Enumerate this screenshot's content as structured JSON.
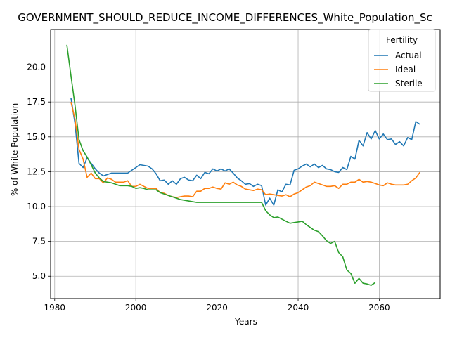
{
  "chart_data": {
    "type": "line",
    "title": "GOVERNMENT_SHOULD_REDUCE_INCOME_DIFFERENCES_White_Population_Sc",
    "xlabel": "Years",
    "ylabel": "% of White Population",
    "xlim": [
      1979,
      2075
    ],
    "ylim": [
      3.4,
      22.7
    ],
    "xticks": [
      1980,
      2000,
      2020,
      2040,
      2060
    ],
    "yticks": [
      5.0,
      7.5,
      10.0,
      12.5,
      15.0,
      17.5,
      20.0
    ],
    "xtick_labels": [
      "1980",
      "2000",
      "2020",
      "2040",
      "2060"
    ],
    "ytick_labels": [
      "5.0",
      "7.5",
      "10.0",
      "12.5",
      "15.0",
      "17.5",
      "20.0"
    ],
    "grid": true,
    "legend": {
      "title": "Fertility",
      "placement": "top-right"
    },
    "series": [
      {
        "name": "Actual",
        "color": "#1f77b4",
        "x": [
          1984,
          1985,
          1986,
          1987,
          1988,
          1989,
          1990,
          1991,
          1992,
          1993,
          1994,
          1995,
          1996,
          1997,
          1998,
          1999,
          2000,
          2001,
          2002,
          2003,
          2004,
          2005,
          2006,
          2007,
          2008,
          2009,
          2010,
          2011,
          2012,
          2013,
          2014,
          2015,
          2016,
          2017,
          2018,
          2019,
          2020,
          2021,
          2022,
          2023,
          2024,
          2025,
          2026,
          2027,
          2028,
          2029,
          2030,
          2031,
          2032,
          2033,
          2034,
          2035,
          2036,
          2037,
          2038,
          2039,
          2040,
          2041,
          2042,
          2043,
          2044,
          2045,
          2046,
          2047,
          2048,
          2049,
          2050,
          2051,
          2052,
          2053,
          2054,
          2055,
          2056,
          2057,
          2058,
          2059,
          2060,
          2061,
          2062,
          2063,
          2064,
          2065,
          2066,
          2067,
          2068,
          2069,
          2070
        ],
        "values": [
          17.8,
          16.0,
          13.1,
          12.8,
          13.5,
          13.1,
          12.7,
          12.4,
          12.2,
          12.3,
          12.4,
          12.4,
          12.4,
          12.4,
          12.4,
          12.6,
          12.8,
          13.0,
          12.95,
          12.9,
          12.7,
          12.35,
          11.85,
          11.9,
          11.6,
          11.85,
          11.6,
          12.0,
          12.1,
          11.9,
          11.85,
          12.25,
          12.0,
          12.45,
          12.35,
          12.7,
          12.55,
          12.7,
          12.55,
          12.7,
          12.4,
          12.05,
          11.85,
          11.6,
          11.65,
          11.45,
          11.6,
          11.5,
          10.1,
          10.6,
          10.1,
          11.2,
          11.05,
          11.6,
          11.55,
          12.6,
          12.7,
          12.9,
          13.05,
          12.85,
          13.05,
          12.8,
          12.95,
          12.7,
          12.65,
          12.5,
          12.45,
          12.8,
          12.65,
          13.6,
          13.4,
          14.75,
          14.35,
          15.3,
          14.85,
          15.45,
          14.85,
          15.2,
          14.8,
          14.85,
          14.45,
          14.65,
          14.35,
          14.95,
          14.8,
          16.1,
          15.9
        ]
      },
      {
        "name": "Ideal",
        "color": "#ff7f0e",
        "x": [
          1984,
          1985,
          1986,
          1987,
          1988,
          1989,
          1990,
          1991,
          1992,
          1993,
          1994,
          1995,
          1996,
          1997,
          1998,
          1999,
          2000,
          2001,
          2002,
          2003,
          2004,
          2005,
          2006,
          2007,
          2008,
          2009,
          2010,
          2011,
          2012,
          2013,
          2014,
          2015,
          2016,
          2017,
          2018,
          2019,
          2020,
          2021,
          2022,
          2023,
          2024,
          2025,
          2026,
          2027,
          2028,
          2029,
          2030,
          2031,
          2032,
          2033,
          2034,
          2035,
          2036,
          2037,
          2038,
          2039,
          2040,
          2041,
          2042,
          2043,
          2044,
          2045,
          2046,
          2047,
          2048,
          2049,
          2050,
          2051,
          2052,
          2053,
          2054,
          2055,
          2056,
          2057,
          2058,
          2059,
          2060,
          2061,
          2062,
          2063,
          2064,
          2065,
          2066,
          2067,
          2068,
          2069,
          2070
        ],
        "values": [
          17.5,
          16.3,
          14.1,
          13.4,
          12.1,
          12.4,
          12.0,
          12.0,
          11.7,
          12.05,
          11.95,
          11.75,
          11.75,
          11.75,
          11.85,
          11.45,
          11.45,
          11.6,
          11.45,
          11.3,
          11.3,
          11.3,
          11.0,
          10.95,
          10.8,
          10.7,
          10.65,
          10.7,
          10.75,
          10.75,
          10.7,
          11.1,
          11.1,
          11.3,
          11.3,
          11.4,
          11.3,
          11.25,
          11.7,
          11.6,
          11.75,
          11.55,
          11.45,
          11.25,
          11.2,
          11.15,
          11.25,
          11.2,
          10.85,
          10.9,
          10.85,
          10.8,
          10.75,
          10.85,
          10.7,
          10.9,
          11.0,
          11.2,
          11.4,
          11.5,
          11.75,
          11.65,
          11.55,
          11.45,
          11.45,
          11.5,
          11.3,
          11.6,
          11.6,
          11.75,
          11.75,
          11.95,
          11.75,
          11.8,
          11.75,
          11.65,
          11.55,
          11.5,
          11.7,
          11.6,
          11.55,
          11.55,
          11.55,
          11.6,
          11.85,
          12.05,
          12.45
        ]
      },
      {
        "name": "Sterile",
        "color": "#2ca02c",
        "x": [
          1983,
          1984,
          1985,
          1986,
          1987,
          1988,
          1989,
          1990,
          1991,
          1992,
          1993,
          1994,
          1995,
          1996,
          1997,
          1998,
          1999,
          2000,
          2001,
          2002,
          2003,
          2004,
          2005,
          2006,
          2007,
          2008,
          2009,
          2010,
          2011,
          2012,
          2013,
          2014,
          2015,
          2016,
          2017,
          2018,
          2019,
          2020,
          2021,
          2022,
          2023,
          2024,
          2025,
          2026,
          2027,
          2028,
          2029,
          2030,
          2031,
          2032,
          2033,
          2034,
          2035,
          2036,
          2037,
          2038,
          2039,
          2040,
          2041,
          2042,
          2043,
          2044,
          2045,
          2046,
          2047,
          2048,
          2049,
          2050,
          2051,
          2052,
          2053,
          2054,
          2055,
          2056,
          2057,
          2058,
          2059
        ],
        "values": [
          21.6,
          19.4,
          17.3,
          14.8,
          14.0,
          13.55,
          13.0,
          12.4,
          12.05,
          11.8,
          11.75,
          11.7,
          11.6,
          11.5,
          11.5,
          11.5,
          11.45,
          11.3,
          11.35,
          11.3,
          11.2,
          11.2,
          11.2,
          11.0,
          10.9,
          10.8,
          10.7,
          10.6,
          10.5,
          10.45,
          10.4,
          10.35,
          10.3,
          10.3,
          10.3,
          10.3,
          10.3,
          10.3,
          10.3,
          10.3,
          10.3,
          10.3,
          10.3,
          10.3,
          10.3,
          10.3,
          10.3,
          10.3,
          10.3,
          9.7,
          9.4,
          9.2,
          9.25,
          9.1,
          8.95,
          8.8,
          8.85,
          8.9,
          8.95,
          8.7,
          8.5,
          8.3,
          8.2,
          7.9,
          7.55,
          7.35,
          7.5,
          6.7,
          6.4,
          5.45,
          5.2,
          4.5,
          4.85,
          4.5,
          4.45,
          4.35,
          4.55
        ]
      }
    ]
  }
}
